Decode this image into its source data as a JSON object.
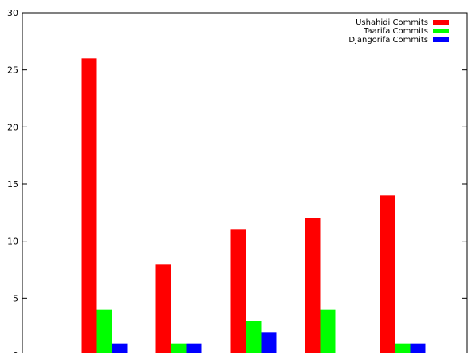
{
  "chart_data": {
    "type": "bar",
    "categories": [
      "",
      "",
      "",
      "",
      ""
    ],
    "series": [
      {
        "name": "Ushahidi Commits",
        "values": [
          26,
          8,
          11,
          12,
          14
        ],
        "color": "#ff0000"
      },
      {
        "name": "Taarifa Commits",
        "values": [
          4,
          1,
          3,
          4,
          1
        ],
        "color": "#00ff00"
      },
      {
        "name": "Djangorifa Commits",
        "values": [
          1,
          1,
          2,
          0,
          1
        ],
        "color": "#0000ff"
      }
    ],
    "title": "",
    "xlabel": "",
    "ylabel": "",
    "ylim": [
      0,
      30
    ],
    "yticks": [
      "0",
      "5",
      "10",
      "15",
      "20",
      "25",
      "30"
    ],
    "grid": false,
    "legend_position": "top-right"
  }
}
